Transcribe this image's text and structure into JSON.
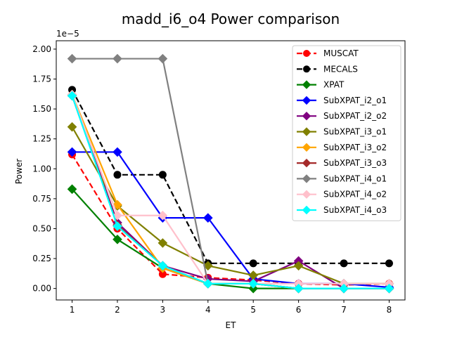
{
  "chart_data": {
    "type": "line",
    "title": "madd_i6_o4 Power comparison",
    "xlabel": "ET",
    "ylabel": "Power",
    "offset_label": "1e−5",
    "x": [
      1,
      2,
      3,
      4,
      5,
      6,
      7,
      8
    ],
    "xlim": [
      0.65,
      8.35
    ],
    "ylim": [
      -0.096,
      2.07
    ],
    "xticks": [
      1,
      2,
      3,
      4,
      5,
      6,
      7,
      8
    ],
    "yticks": [
      0.0,
      0.25,
      0.5,
      0.75,
      1.0,
      1.25,
      1.5,
      1.75,
      2.0
    ],
    "ytick_labels": [
      "0.00",
      "0.25",
      "0.50",
      "0.75",
      "1.00",
      "1.25",
      "1.50",
      "1.75",
      "2.00"
    ],
    "grid": false,
    "legend_position": "top-right",
    "series": [
      {
        "name": "MUSCAT",
        "color": "#ff0000",
        "marker": "circle",
        "dash": true,
        "values": [
          1.12,
          0.5,
          0.12,
          0.09,
          0.07,
          0.04,
          0.03,
          0.04
        ]
      },
      {
        "name": "MECALS",
        "color": "#000000",
        "marker": "circle",
        "dash": true,
        "values": [
          1.66,
          0.95,
          0.95,
          0.21,
          0.21,
          0.21,
          0.21,
          0.21
        ]
      },
      {
        "name": "XPAT",
        "color": "#008000",
        "marker": "diamond",
        "dash": false,
        "values": [
          0.83,
          0.41,
          0.17,
          0.04,
          0.0,
          0.0,
          0.0,
          0.0
        ]
      },
      {
        "name": "SubXPAT_i2_o1",
        "color": "#0000ff",
        "marker": "diamond",
        "dash": false,
        "values": [
          1.14,
          1.14,
          0.59,
          0.59,
          0.08,
          0.04,
          0.04,
          0.01
        ]
      },
      {
        "name": "SubXPAT_i2_o2",
        "color": "#800080",
        "marker": "diamond",
        "dash": false,
        "values": [
          1.62,
          0.55,
          0.19,
          0.08,
          0.06,
          0.23,
          0.0,
          0.0
        ]
      },
      {
        "name": "SubXPAT_i3_o1",
        "color": "#808000",
        "marker": "diamond",
        "dash": false,
        "values": [
          1.35,
          0.69,
          0.38,
          0.19,
          0.11,
          0.19,
          0.04,
          0.04
        ]
      },
      {
        "name": "SubXPAT_i3_o2",
        "color": "#ffa500",
        "marker": "diamond",
        "dash": false,
        "values": [
          1.62,
          0.7,
          0.17,
          0.04,
          0.04,
          0.0,
          0.0,
          0.0
        ]
      },
      {
        "name": "SubXPAT_i3_o3",
        "color": "#a52a2a",
        "marker": "diamond",
        "dash": false,
        "values": [
          1.61,
          0.53,
          0.19,
          0.04,
          0.04,
          0.0,
          0.0,
          0.0
        ]
      },
      {
        "name": "SubXPAT_i4_o1",
        "color": "#808080",
        "marker": "diamond",
        "dash": false,
        "values": [
          1.92,
          1.92,
          1.92,
          0.04,
          0.04,
          0.0,
          0.0,
          0.0
        ]
      },
      {
        "name": "SubXPAT_i4_o2",
        "color": "#ffc0cb",
        "marker": "diamond",
        "dash": false,
        "values": [
          1.62,
          0.61,
          0.61,
          0.04,
          0.04,
          0.04,
          0.04,
          0.04
        ]
      },
      {
        "name": "SubXPAT_i4_o3",
        "color": "#00ffff",
        "marker": "diamond",
        "dash": false,
        "values": [
          1.61,
          0.52,
          0.19,
          0.04,
          0.04,
          0.0,
          0.0,
          0.0
        ]
      }
    ]
  }
}
